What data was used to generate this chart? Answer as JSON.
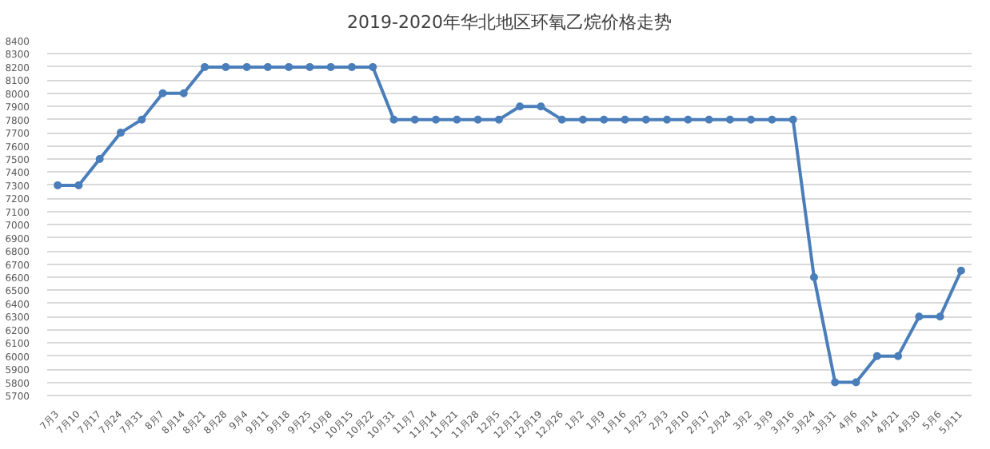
{
  "chart_data": {
    "type": "line",
    "title": "2019-2020年华北地区环氧乙烷价格走势",
    "categories": [
      "7月3",
      "7月10",
      "7月17",
      "7月24",
      "7月31",
      "8月7",
      "8月14",
      "8月21",
      "8月28",
      "9月4",
      "9月11",
      "9月18",
      "9月25",
      "10月8",
      "10月15",
      "10月22",
      "10月31",
      "11月7",
      "11月14",
      "11月21",
      "11月28",
      "12月5",
      "12月12",
      "12月19",
      "12月26",
      "1月2",
      "1月9",
      "1月16",
      "1月23",
      "2月3",
      "2月10",
      "2月17",
      "2月24",
      "3月2",
      "3月9",
      "3月16",
      "3月24",
      "3月31",
      "4月6",
      "4月14",
      "4月21",
      "4月30",
      "5月6",
      "5月11"
    ],
    "series": [
      {
        "color": "#4a7ebb",
        "values": [
          7300,
          7300,
          7500,
          7700,
          7800,
          8000,
          8000,
          8200,
          8200,
          8200,
          8200,
          8200,
          8200,
          8200,
          8200,
          8200,
          7800,
          7800,
          7800,
          7800,
          7800,
          7800,
          7900,
          7900,
          7800,
          7800,
          7800,
          7800,
          7800,
          7800,
          7800,
          7800,
          7800,
          7800,
          7800,
          7800,
          6600,
          5800,
          5800,
          6000,
          6000,
          6300,
          6300,
          6650
        ]
      }
    ],
    "ylim": [
      5700,
      8400
    ],
    "yticks": [
      5700,
      5800,
      5900,
      6000,
      6100,
      6200,
      6300,
      6400,
      6500,
      6600,
      6700,
      6800,
      6900,
      7000,
      7100,
      7200,
      7300,
      7400,
      7500,
      7600,
      7700,
      7800,
      7900,
      8000,
      8100,
      8200,
      8300,
      8400
    ],
    "grid": "y",
    "marker": "circle",
    "line_style": "solid"
  }
}
